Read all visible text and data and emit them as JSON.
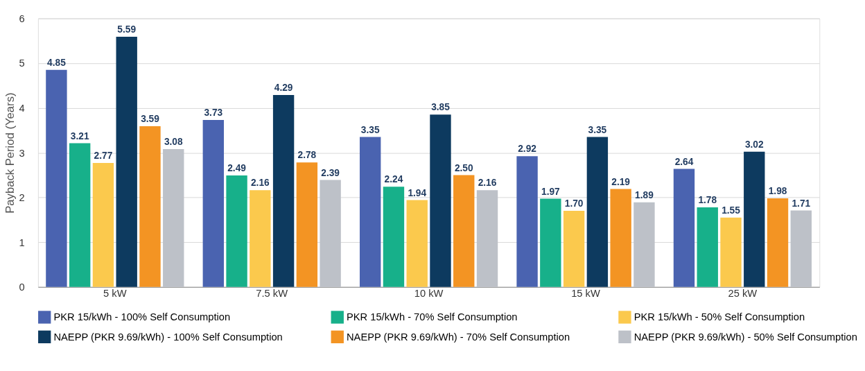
{
  "chart_data": {
    "type": "bar",
    "ylabel": "Payback Period (Years)",
    "categories": [
      "5 kW",
      "7.5 kW",
      "10 kW",
      "15 kW",
      "25 kW"
    ],
    "ylim": [
      0,
      6
    ],
    "yticks": [
      0,
      1,
      2,
      3,
      4,
      5,
      6
    ],
    "grid": "y",
    "legend": "bottom",
    "series": [
      {
        "name": "PKR 15/kWh - 100% Self Consumption",
        "color": "#4a63b0",
        "values": [
          4.85,
          3.73,
          3.35,
          2.92,
          2.64
        ],
        "value_labels": [
          "4.85",
          "3.73",
          "3.35",
          "2.92",
          "2.64"
        ]
      },
      {
        "name": "PKR 15/kWh - 70% Self Consumption",
        "color": "#17b08a",
        "values": [
          3.21,
          2.49,
          2.24,
          1.97,
          1.78
        ],
        "value_labels": [
          "3.21",
          "2.49",
          "2.24",
          "1.97",
          "1.78"
        ]
      },
      {
        "name": "PKR 15/kWh - 50% Self Consumption",
        "color": "#fbc94d",
        "values": [
          2.77,
          2.16,
          1.94,
          1.7,
          1.55
        ],
        "value_labels": [
          "2.77",
          "2.16",
          "1.94",
          "1.70",
          "1.55"
        ]
      },
      {
        "name": "NAEPP (PKR 9.69/kWh) - 100% Self Consumption",
        "color": "#0d3a5f",
        "values": [
          5.59,
          4.29,
          3.85,
          3.35,
          3.02
        ],
        "value_labels": [
          "5.59",
          "4.29",
          "3.85",
          "3.35",
          "3.02"
        ]
      },
      {
        "name": "NAEPP (PKR 9.69/kWh) - 70% Self Consumption",
        "color": "#f39423",
        "values": [
          3.59,
          2.78,
          2.5,
          2.19,
          1.98
        ],
        "value_labels": [
          "3.59",
          "2.78",
          "2.50",
          "2.19",
          "1.98"
        ]
      },
      {
        "name": "NAEPP (PKR 9.69/kWh) - 50% Self Consumption",
        "color": "#bdc1c8",
        "values": [
          3.08,
          2.39,
          2.16,
          1.89,
          1.71
        ],
        "value_labels": [
          "3.08",
          "2.39",
          "2.16",
          "1.89",
          "1.71"
        ]
      }
    ]
  }
}
